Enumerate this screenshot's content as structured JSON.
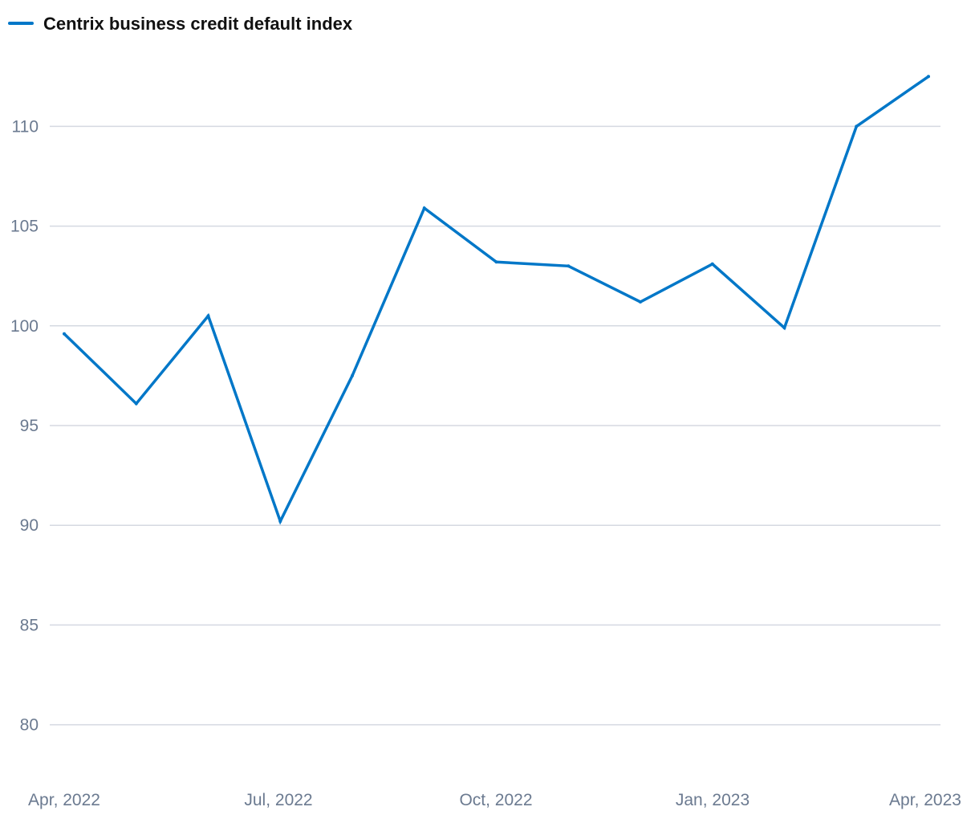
{
  "chart_data": {
    "type": "line",
    "legend_position": "top-left",
    "grid": true,
    "x_ticks": [
      "Apr, 2022",
      "Jul, 2022",
      "Oct, 2022",
      "Jan, 2023",
      "Apr, 2023"
    ],
    "y_ticks": [
      80,
      85,
      90,
      95,
      100,
      105,
      110
    ],
    "ylim": [
      80,
      112.5
    ],
    "x": [
      "2022-04",
      "2022-05",
      "2022-06",
      "2022-07",
      "2022-08",
      "2022-09",
      "2022-10",
      "2022-11",
      "2022-12",
      "2023-01",
      "2023-02",
      "2023-03",
      "2023-04"
    ],
    "series": [
      {
        "name": "Centrix business credit default index",
        "color": "#0077c8",
        "values": [
          99.6,
          96.1,
          100.5,
          90.2,
          97.5,
          105.9,
          103.2,
          103.0,
          101.2,
          103.1,
          99.9,
          110.0,
          112.5
        ]
      }
    ]
  }
}
